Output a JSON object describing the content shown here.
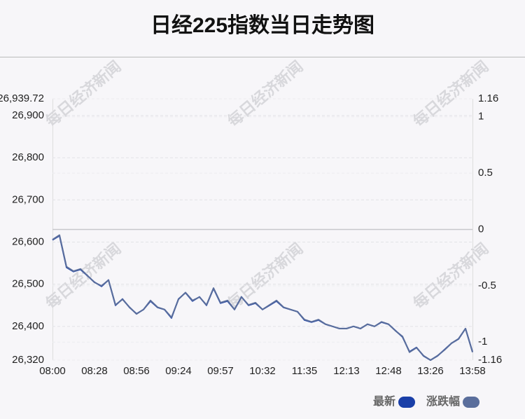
{
  "chart_data": {
    "type": "line",
    "title": "日经225指数当日走势图",
    "watermark": "每日经济新闻",
    "categories": [
      "08:00",
      null,
      null,
      null,
      null,
      null,
      "08:28",
      null,
      null,
      null,
      null,
      null,
      "08:56",
      null,
      null,
      null,
      null,
      null,
      "09:24",
      null,
      null,
      null,
      null,
      null,
      "09:57",
      null,
      null,
      null,
      null,
      null,
      "10:32",
      null,
      null,
      null,
      null,
      null,
      "11:35",
      null,
      null,
      null,
      null,
      null,
      "12:13",
      null,
      null,
      null,
      null,
      null,
      "12:48",
      null,
      null,
      null,
      null,
      null,
      "13:26",
      null,
      null,
      null,
      null,
      null,
      "13:58"
    ],
    "series": [
      {
        "name": "最新",
        "color": "#1a3fa8",
        "values": [
          26605,
          26615,
          26540,
          26530,
          26535,
          26520,
          26505,
          26495,
          26510,
          26450,
          26465,
          26445,
          26430,
          26440,
          26460,
          26445,
          26440,
          26420,
          26465,
          26480,
          26460,
          26470,
          26450,
          26490,
          26455,
          26460,
          26440,
          26470,
          26450,
          26455,
          26440,
          26450,
          26460,
          26445,
          26440,
          26435,
          26415,
          26410,
          26415,
          26405,
          26400,
          26395,
          26395,
          26400,
          26395,
          26405,
          26400,
          26410,
          26405,
          26390,
          26375,
          26340,
          26350,
          26330,
          26320,
          26330,
          26345,
          26360,
          26370,
          26395,
          26340
        ]
      },
      {
        "name": "涨跌幅",
        "color": "#5a6e9c",
        "axis": "y2",
        "values": [
          -0.09,
          -0.05,
          -0.33,
          -0.37,
          -0.35,
          -0.41,
          -0.47,
          -0.5,
          -0.45,
          -0.67,
          -0.62,
          -0.69,
          -0.75,
          -0.71,
          -0.63,
          -0.69,
          -0.71,
          -0.78,
          -0.62,
          -0.56,
          -0.63,
          -0.6,
          -0.67,
          -0.52,
          -0.65,
          -0.63,
          -0.71,
          -0.6,
          -0.67,
          -0.65,
          -0.71,
          -0.67,
          -0.63,
          -0.69,
          -0.71,
          -0.73,
          -0.8,
          -0.82,
          -0.8,
          -0.84,
          -0.86,
          -0.88,
          -0.88,
          -0.86,
          -0.88,
          -0.84,
          -0.86,
          -0.82,
          -0.84,
          -0.9,
          -0.95,
          -1.09,
          -1.05,
          -1.12,
          -1.16,
          -1.12,
          -1.07,
          -1.01,
          -0.97,
          -0.88,
          -1.09
        ]
      }
    ],
    "ylim": [
      26320,
      26939.72
    ],
    "yticks": [
      {
        "value": 26320,
        "label": "26,320"
      },
      {
        "value": 26400,
        "label": "26,400"
      },
      {
        "value": 26500,
        "label": "26,500"
      },
      {
        "value": 26600,
        "label": "26,600"
      },
      {
        "value": 26700,
        "label": "26,700"
      },
      {
        "value": 26800,
        "label": "26,800"
      },
      {
        "value": 26900,
        "label": "26,900"
      },
      {
        "value": 26939.72,
        "label": "26,939.72"
      }
    ],
    "y2lim": [
      -1.16,
      1.16
    ],
    "y2ticks": [
      -1.16,
      -1,
      -0.5,
      0,
      0.5,
      1,
      1.16
    ],
    "grid": true
  }
}
